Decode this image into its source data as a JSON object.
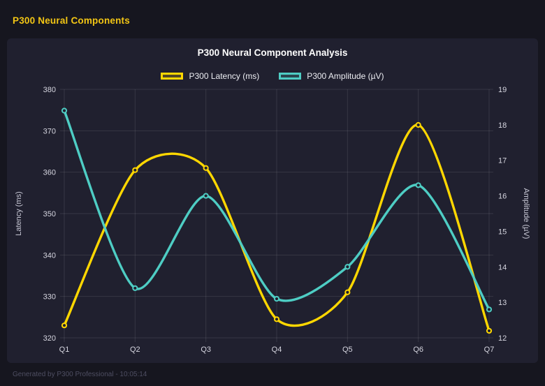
{
  "page": {
    "header_title": "P300 Neural Components",
    "footer": "Generated by P300 Professional - 10:05:14"
  },
  "colors": {
    "page_background": "#16161f",
    "card_background": "#20202f",
    "header_accent": "#f3c614",
    "grid": "rgba(255,255,255,0.10)",
    "tick_text": "#d6d6e0",
    "title_text": "#ffffff"
  },
  "chart_data": {
    "type": "line",
    "title": "P300 Neural Component Analysis",
    "categories": [
      "Q1",
      "Q2",
      "Q3",
      "Q4",
      "Q5",
      "Q6",
      "Q7"
    ],
    "series": [
      {
        "name": "P300 Latency (ms)",
        "axis": "left",
        "color": "#FFD700",
        "values": [
          323,
          360.5,
          361,
          324.5,
          331,
          371.4,
          321.7
        ]
      },
      {
        "name": "P300 Amplitude (µV)",
        "axis": "right",
        "color": "#4ECDC4",
        "values": [
          18.4,
          13.4,
          16.0,
          13.1,
          14.0,
          16.3,
          12.8
        ]
      }
    ],
    "left_axis": {
      "label": "Latency (ms)",
      "min": 320,
      "max": 380,
      "step": 10
    },
    "right_axis": {
      "label": "Amplitude (µV)",
      "min": 12,
      "max": 19,
      "step": 1
    },
    "grid": true,
    "legend_position": "top",
    "line_tension": 0.4
  }
}
